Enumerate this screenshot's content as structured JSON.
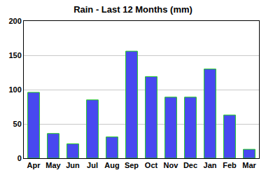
{
  "chart_data": {
    "type": "bar",
    "title": "Rain - Last 12 Months (mm)",
    "categories": [
      "Apr",
      "May",
      "Jun",
      "Jul",
      "Aug",
      "Sep",
      "Oct",
      "Nov",
      "Dec",
      "Jan",
      "Feb",
      "Mar"
    ],
    "values": [
      96,
      36,
      21,
      85,
      31,
      156,
      119,
      89,
      89,
      130,
      63,
      13
    ],
    "color": "#4848f0",
    "ylim": [
      0,
      200
    ],
    "yticks": [
      0,
      50,
      100,
      150,
      200
    ],
    "grid": true
  }
}
